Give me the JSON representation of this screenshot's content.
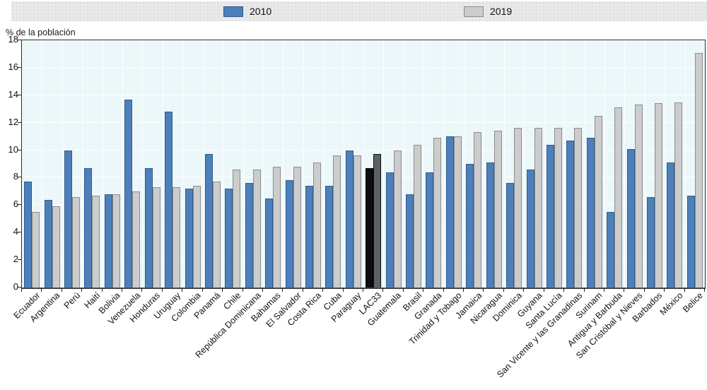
{
  "y_axis_title": "% de la población",
  "chart_data": {
    "type": "bar",
    "title": "",
    "xlabel": "",
    "ylabel": "% de la población",
    "ylim": [
      0,
      18
    ],
    "ytick_step": 2,
    "grid": true,
    "legend_position": "top",
    "plot_background": "#ecf7fa",
    "categories": [
      "Ecuador",
      "Argentina",
      "Perú",
      "Haití",
      "Bolivia",
      "Venezuela",
      "Honduras",
      "Uruguay",
      "Colombia",
      "Panamá",
      "Chile",
      "República Dominicana",
      "Bahamas",
      "El Salvador",
      "Costa Rica",
      "Cuba",
      "Paraguay",
      "LAC33",
      "Guatemala",
      "Brasil",
      "Granada",
      "Trinidad y Tobago",
      "Jamaica",
      "Nicaragua",
      "Dominica",
      "Guyana",
      "Santa Lucía",
      "San Vicente y las Granadinas",
      "Surinam",
      "Antigua y Barbuda",
      "San Cristóbal y Nieves",
      "Barbados",
      "México",
      "Belice"
    ],
    "series": [
      {
        "name": "2010",
        "color": "#4d80bb",
        "border": "#2f5a87",
        "values": [
          7.7,
          6.4,
          10.0,
          8.7,
          6.8,
          13.7,
          8.7,
          12.8,
          7.2,
          9.7,
          7.2,
          7.6,
          6.5,
          7.8,
          7.4,
          7.4,
          10.0,
          8.7,
          8.4,
          6.8,
          8.4,
          11.0,
          9.0,
          9.1,
          7.6,
          8.6,
          10.4,
          10.7,
          10.9,
          5.5,
          10.1,
          6.6,
          9.1,
          6.7
        ]
      },
      {
        "name": "2019",
        "color": "#cccccc",
        "border": "#8c8c8c",
        "values": [
          5.5,
          5.9,
          6.6,
          6.7,
          6.8,
          7.0,
          7.3,
          7.3,
          7.4,
          7.7,
          8.6,
          8.6,
          8.8,
          8.8,
          9.1,
          9.6,
          9.6,
          9.7,
          10.0,
          10.4,
          10.9,
          11.0,
          11.3,
          11.4,
          11.6,
          11.6,
          11.6,
          11.6,
          12.5,
          13.1,
          13.3,
          13.4,
          13.5,
          17.1
        ]
      }
    ],
    "highlight": {
      "category": "LAC33",
      "colors": {
        "2010": {
          "fill": "#0d0d0d",
          "border": "#000000"
        },
        "2019": {
          "fill": "#5d6166",
          "border": "#101010"
        }
      }
    }
  }
}
